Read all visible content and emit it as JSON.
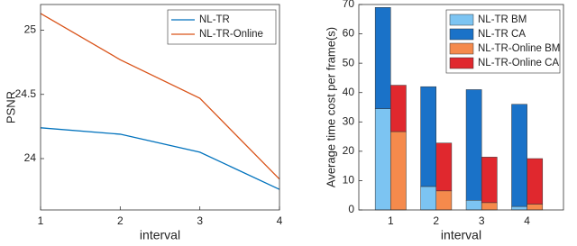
{
  "chart_data": [
    {
      "type": "line",
      "x_label": "interval",
      "y_label": "PSNR",
      "x": [
        1,
        2,
        3,
        4
      ],
      "xlim": [
        1,
        4
      ],
      "xticks": [
        1,
        2,
        3,
        4
      ],
      "ylim": [
        23.6,
        25.2
      ],
      "yticks": [
        24,
        24.5,
        25
      ],
      "legend": "upper-right",
      "series": [
        {
          "name": "NL-TR",
          "color": "#0072bd",
          "values": [
            24.24,
            24.19,
            24.05,
            23.76
          ]
        },
        {
          "name": "NL-TR-Online",
          "color": "#d95319",
          "values": [
            25.13,
            24.77,
            24.47,
            23.84
          ]
        }
      ]
    },
    {
      "type": "bar",
      "x_label": "interval",
      "y_label": "Average time cost per frame(s)",
      "x": [
        1,
        2,
        3,
        4
      ],
      "xlim": [
        0.3,
        4.8
      ],
      "xticks": [
        1,
        2,
        3,
        4
      ],
      "ylim": [
        0,
        70
      ],
      "yticks": [
        0,
        10,
        20,
        30,
        40,
        50,
        60,
        70
      ],
      "legend": "upper-right",
      "series": [
        {
          "name": "NL-TR BM",
          "color": "#7cc4f2",
          "stack": 0,
          "values": [
            34.5,
            8,
            3.3,
            1.2
          ]
        },
        {
          "name": "NL-TR CA",
          "color": "#1a72c8",
          "stack": 0,
          "values": [
            34.5,
            34,
            37.7,
            34.8
          ]
        },
        {
          "name": "NL-TR-Online BM",
          "color": "#f58a4c",
          "stack": 1,
          "values": [
            26.7,
            6.5,
            2.5,
            2
          ]
        },
        {
          "name": "NL-TR-Online CA",
          "color": "#e0282e",
          "stack": 1,
          "values": [
            15.8,
            16.3,
            15.5,
            15.5
          ]
        }
      ]
    }
  ]
}
